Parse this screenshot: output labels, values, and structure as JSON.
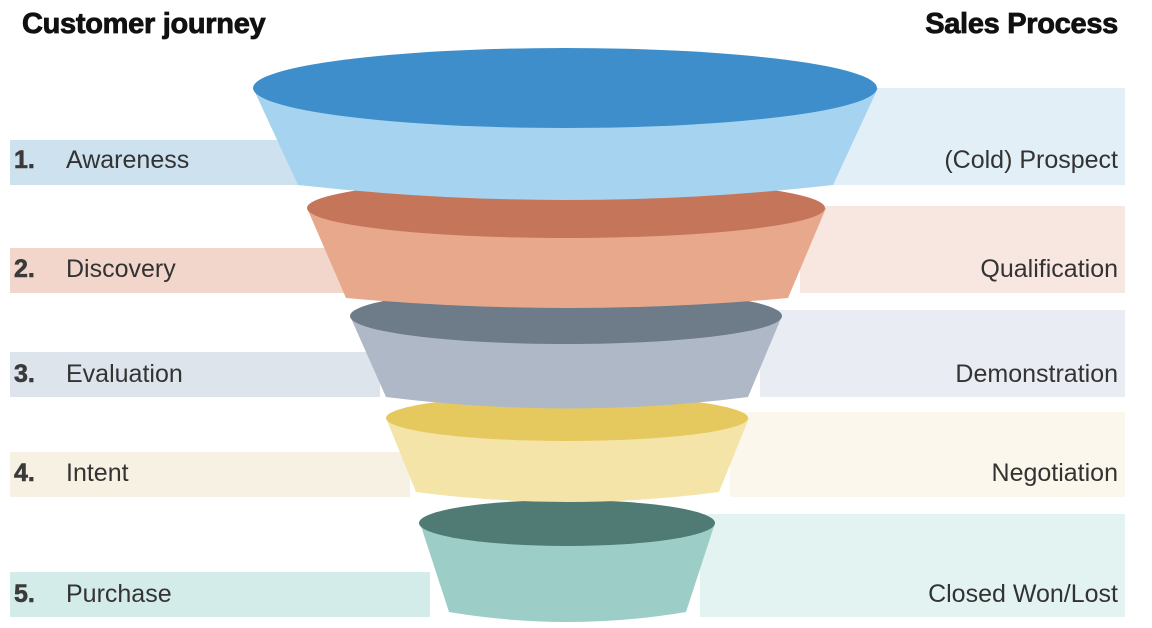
{
  "headings": {
    "left": "Customer journey",
    "right": "Sales Process"
  },
  "stages": [
    {
      "number": "1.",
      "journey": "Awareness",
      "sales": "(Cold) Prospect",
      "top_color": "#3d8ecb",
      "body_color": "#a6d3f0",
      "band_left": "#cde1ee",
      "band_right": "#e3eff7"
    },
    {
      "number": "2.",
      "journey": "Discovery",
      "sales": "Qualification",
      "top_color": "#c5765a",
      "body_color": "#e8a88c",
      "band_left": "#f2d6cc",
      "band_right": "#f8e6e0"
    },
    {
      "number": "3.",
      "journey": "Evaluation",
      "sales": "Demonstration",
      "top_color": "#6e7b88",
      "body_color": "#aeb8c6",
      "band_left": "#dde4ec",
      "band_right": "#e9edf3"
    },
    {
      "number": "4.",
      "journey": "Intent",
      "sales": "Negotiation",
      "top_color": "#e5c95e",
      "body_color": "#f5e4a8",
      "band_left": "#f6f1e2",
      "band_right": "#fbf7ec"
    },
    {
      "number": "5.",
      "journey": "Purchase",
      "sales": "Closed Won/Lost",
      "top_color": "#507a74",
      "body_color": "#9ccdc6",
      "band_left": "#d3ecea",
      "band_right": "#e2f3f1"
    }
  ]
}
